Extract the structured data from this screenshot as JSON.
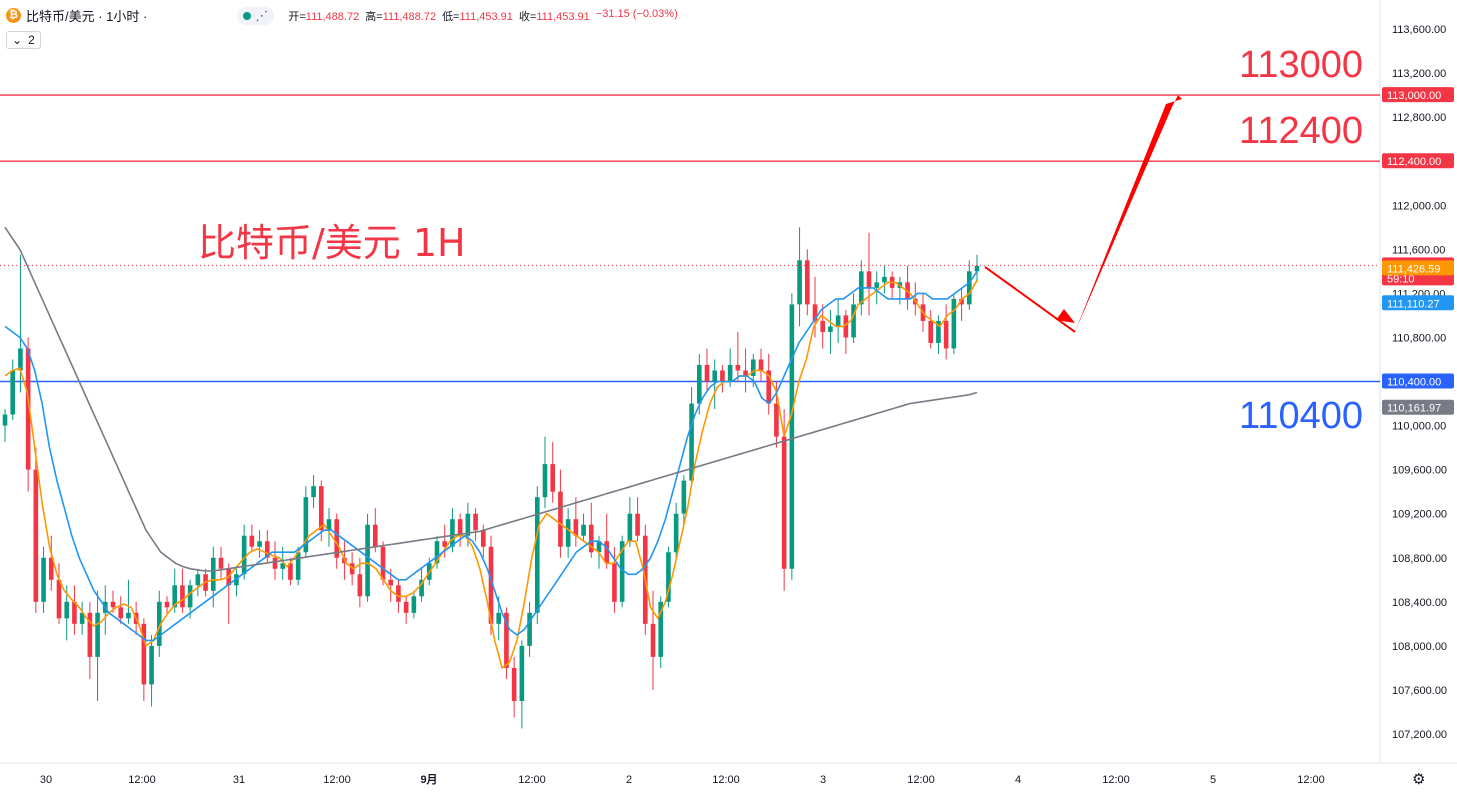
{
  "header": {
    "symbol_label": "比特币/美元 · 1小时 ·",
    "coin_icon": "bitcoin-icon",
    "ohlc": [
      {
        "label": "开=",
        "value": "111,488.72"
      },
      {
        "label": "高=",
        "value": "111,488.72"
      },
      {
        "label": "低=",
        "value": "111,453.91"
      },
      {
        "label": "收=",
        "value": "111,453.91"
      },
      {
        "label": "",
        "value": "−31.15 (−0.03%)"
      }
    ]
  },
  "indicator_toggle": {
    "icon": "chevron-down-icon",
    "count": "2"
  },
  "settings_icon": "gear-icon",
  "colors": {
    "up": "#089981",
    "down": "#f23645",
    "ma_fast": "#ff9800",
    "ma_mid": "#2196f3",
    "ma_slow": "#787b86",
    "support": "#2962ff",
    "resistance": "#f23645"
  },
  "chart_data": {
    "type": "candlestick",
    "title": "比特币/美元 1H",
    "ylim": [
      107000,
      113800
    ],
    "y_ticks": [
      "113,600.00",
      "113,200.00",
      "112,800.00",
      "112,400.00",
      "112,000.00",
      "111,600.00",
      "111,200.00",
      "110,800.00",
      "110,400.00",
      "110,000.00",
      "109,600.00",
      "109,200.00",
      "108,800.00",
      "108,400.00",
      "108,000.00",
      "107,600.00",
      "107,200.00"
    ],
    "x_ticks": [
      "30",
      "12:00",
      "31",
      "12:00",
      "9月",
      "12:00",
      "2",
      "12:00",
      "3",
      "12:00",
      "4",
      "12:00",
      "5",
      "12:00"
    ],
    "candles_ohlc": [
      [
        110000,
        110150,
        109850,
        110100
      ],
      [
        110100,
        110600,
        110050,
        110500
      ],
      [
        110500,
        111550,
        110300,
        110700
      ],
      [
        110700,
        110800,
        109400,
        109600
      ],
      [
        109600,
        109800,
        108300,
        108400
      ],
      [
        108400,
        108900,
        108300,
        108800
      ],
      [
        108800,
        109000,
        108500,
        108600
      ],
      [
        108600,
        108750,
        108200,
        108250
      ],
      [
        108250,
        108550,
        108050,
        108400
      ],
      [
        108400,
        108550,
        108100,
        108200
      ],
      [
        108200,
        108400,
        108100,
        108300
      ],
      [
        108300,
        108400,
        107700,
        107900
      ],
      [
        107900,
        108500,
        107500,
        108300
      ],
      [
        108300,
        108550,
        108100,
        108400
      ],
      [
        108400,
        108500,
        108300,
        108350
      ],
      [
        108350,
        108450,
        108200,
        108250
      ],
      [
        108250,
        108600,
        108200,
        108300
      ],
      [
        108300,
        108400,
        108100,
        108200
      ],
      [
        108200,
        108250,
        107500,
        107650
      ],
      [
        107650,
        108100,
        107450,
        108000
      ],
      [
        108000,
        108500,
        107900,
        108400
      ],
      [
        108400,
        108450,
        108300,
        108350
      ],
      [
        108350,
        108700,
        108300,
        108550
      ],
      [
        108550,
        108700,
        108300,
        108350
      ],
      [
        108350,
        108600,
        108250,
        108550
      ],
      [
        108550,
        108700,
        108450,
        108650
      ],
      [
        108650,
        108700,
        108450,
        108500
      ],
      [
        108500,
        108900,
        108350,
        108800
      ],
      [
        108800,
        108900,
        108600,
        108700
      ],
      [
        108700,
        108750,
        108200,
        108550
      ],
      [
        108550,
        108700,
        108450,
        108650
      ],
      [
        108650,
        109100,
        108600,
        109000
      ],
      [
        109000,
        109100,
        108850,
        108900
      ],
      [
        108900,
        109050,
        108800,
        108950
      ],
      [
        108950,
        109050,
        108750,
        108800
      ],
      [
        108800,
        108950,
        108600,
        108700
      ],
      [
        108700,
        108900,
        108600,
        108750
      ],
      [
        108750,
        108800,
        108550,
        108600
      ],
      [
        108600,
        108900,
        108550,
        108850
      ],
      [
        108850,
        109450,
        108800,
        109350
      ],
      [
        109350,
        109550,
        109250,
        109450
      ],
      [
        109450,
        109500,
        108950,
        109050
      ],
      [
        109050,
        109250,
        108900,
        109150
      ],
      [
        109150,
        109200,
        108700,
        108800
      ],
      [
        108800,
        108950,
        108600,
        108750
      ],
      [
        108750,
        108850,
        108550,
        108650
      ],
      [
        108650,
        108800,
        108350,
        108450
      ],
      [
        108450,
        109200,
        108400,
        109100
      ],
      [
        109100,
        109250,
        108850,
        108900
      ],
      [
        108900,
        108950,
        108550,
        108600
      ],
      [
        108600,
        108700,
        108400,
        108550
      ],
      [
        108550,
        108600,
        108300,
        108400
      ],
      [
        108400,
        108450,
        108200,
        108300
      ],
      [
        108300,
        108500,
        108250,
        108450
      ],
      [
        108450,
        108700,
        108400,
        108600
      ],
      [
        108600,
        108800,
        108550,
        108750
      ],
      [
        108750,
        109000,
        108700,
        108950
      ],
      [
        108950,
        109100,
        108800,
        108900
      ],
      [
        108900,
        109250,
        108850,
        109150
      ],
      [
        109150,
        109200,
        108900,
        109000
      ],
      [
        109000,
        109300,
        108900,
        109200
      ],
      [
        109200,
        109250,
        108950,
        109050
      ],
      [
        109050,
        109100,
        108800,
        108900
      ],
      [
        108900,
        109000,
        108100,
        108200
      ],
      [
        108200,
        108450,
        108050,
        108300
      ],
      [
        108300,
        108350,
        107700,
        107800
      ],
      [
        107800,
        107900,
        107350,
        107500
      ],
      [
        107500,
        108050,
        107250,
        108000
      ],
      [
        108000,
        108400,
        107900,
        108300
      ],
      [
        108300,
        109450,
        108200,
        109350
      ],
      [
        109350,
        109900,
        109250,
        109650
      ],
      [
        109650,
        109850,
        109300,
        109400
      ],
      [
        109400,
        109600,
        108800,
        108900
      ],
      [
        108900,
        109250,
        108800,
        109150
      ],
      [
        109150,
        109350,
        108900,
        109000
      ],
      [
        109000,
        109200,
        108950,
        109100
      ],
      [
        109100,
        109300,
        108800,
        108850
      ],
      [
        108850,
        109000,
        108700,
        108950
      ],
      [
        108950,
        109200,
        108700,
        108750
      ],
      [
        108750,
        108900,
        108300,
        108400
      ],
      [
        108400,
        109000,
        108350,
        108950
      ],
      [
        108950,
        109350,
        108900,
        109200
      ],
      [
        109200,
        109350,
        108950,
        109000
      ],
      [
        109000,
        109100,
        108100,
        108200
      ],
      [
        108200,
        108500,
        107600,
        107900
      ],
      [
        107900,
        108450,
        107800,
        108400
      ],
      [
        108400,
        108900,
        108350,
        108850
      ],
      [
        108850,
        109300,
        108800,
        109200
      ],
      [
        109200,
        109550,
        109100,
        109500
      ],
      [
        109500,
        110350,
        109450,
        110200
      ],
      [
        110200,
        110650,
        110100,
        110550
      ],
      [
        110550,
        110700,
        110300,
        110400
      ],
      [
        110400,
        110600,
        110150,
        110500
      ],
      [
        110500,
        110550,
        110300,
        110400
      ],
      [
        110400,
        110700,
        110350,
        110550
      ],
      [
        110550,
        110850,
        110400,
        110500
      ],
      [
        110500,
        110700,
        110300,
        110450
      ],
      [
        110450,
        110650,
        110350,
        110600
      ],
      [
        110600,
        110700,
        110400,
        110500
      ],
      [
        110500,
        110650,
        110100,
        110200
      ],
      [
        110200,
        110400,
        109800,
        109900
      ],
      [
        109900,
        110150,
        108500,
        108700
      ],
      [
        108700,
        111200,
        108600,
        111100
      ],
      [
        111100,
        111800,
        110900,
        111500
      ],
      [
        111500,
        111600,
        111000,
        111100
      ],
      [
        111100,
        111350,
        110800,
        110950
      ],
      [
        110950,
        111100,
        110700,
        110850
      ],
      [
        110850,
        111050,
        110650,
        110900
      ],
      [
        110900,
        111150,
        110750,
        111000
      ],
      [
        111000,
        111050,
        110650,
        110800
      ],
      [
        110800,
        111200,
        110750,
        111100
      ],
      [
        111100,
        111500,
        111000,
        111400
      ],
      [
        111400,
        111750,
        111000,
        111250
      ],
      [
        111250,
        111400,
        111100,
        111300
      ],
      [
        111300,
        111450,
        111200,
        111350
      ],
      [
        111350,
        111400,
        111150,
        111250
      ],
      [
        111250,
        111350,
        111100,
        111300
      ],
      [
        111300,
        111450,
        111050,
        111150
      ],
      [
        111150,
        111300,
        111000,
        111100
      ],
      [
        111100,
        111200,
        110850,
        110950
      ],
      [
        110950,
        111050,
        110700,
        110750
      ],
      [
        110750,
        111000,
        110650,
        110950
      ],
      [
        110950,
        111100,
        110600,
        110700
      ],
      [
        110700,
        111200,
        110650,
        111150
      ],
      [
        111150,
        111250,
        110950,
        111100
      ],
      [
        111100,
        111500,
        111050,
        111400
      ],
      [
        111400,
        111550,
        111300,
        111450
      ]
    ],
    "series": [
      {
        "name": "",
        "values": [
          110450,
          110500,
          110520,
          110300,
          109800,
          109300,
          108900,
          108650,
          108500,
          108420,
          108350,
          108250,
          108180,
          108220,
          108300,
          108350,
          108380,
          108350,
          108200,
          108000,
          108050,
          108200,
          108300,
          108380,
          108420,
          108480,
          108530,
          108580,
          108600,
          108600,
          108620,
          108700,
          108780,
          108850,
          108880,
          108850,
          108820,
          108800,
          108720,
          108800,
          108900,
          109000,
          109050,
          109100,
          109000,
          108900,
          108750,
          108700,
          108750,
          108750,
          108700,
          108600,
          108500,
          108450,
          108450,
          108480,
          108550,
          108650,
          108750,
          108850,
          108950,
          109000,
          109000,
          108900,
          108700,
          108400,
          108050,
          107800,
          107850,
          108050,
          108400,
          108800,
          109100,
          109200,
          109150,
          109100,
          109050,
          109000,
          108950,
          108900,
          108850,
          108750,
          108750,
          108850,
          108950,
          108950,
          108700,
          108350,
          108250,
          108400,
          108650,
          108950,
          109250,
          109650,
          109950,
          110200,
          110350,
          110400,
          110400,
          110450,
          110450,
          110500,
          110500,
          110450,
          110300,
          109900,
          110100,
          110400,
          110600,
          110900,
          111000,
          110950,
          110900,
          110900,
          110950,
          111100,
          111150,
          111200,
          111250,
          111300,
          111300,
          111250,
          111200,
          111100,
          111000,
          110950,
          110900,
          111000,
          111050,
          111150,
          111200,
          111320
        ]
      },
      {
        "name": "",
        "values": [
          110900,
          110850,
          110800,
          110700,
          110500,
          110200,
          109800,
          109500,
          109250,
          109000,
          108800,
          108650,
          108500,
          108400,
          108300,
          108250,
          108200,
          108150,
          108100,
          108050,
          108050,
          108100,
          108150,
          108200,
          108250,
          108300,
          108350,
          108400,
          108450,
          108500,
          108550,
          108600,
          108650,
          108700,
          108750,
          108800,
          108850,
          108850,
          108850,
          108850,
          108900,
          108950,
          109000,
          109050,
          109050,
          109000,
          108950,
          108900,
          108850,
          108800,
          108750,
          108700,
          108650,
          108600,
          108600,
          108650,
          108700,
          108750,
          108800,
          108850,
          108900,
          108950,
          109000,
          108950,
          108850,
          108700,
          108500,
          108300,
          108150,
          108100,
          108150,
          108250,
          108350,
          108450,
          108550,
          108650,
          108750,
          108850,
          108900,
          108950,
          108950,
          108900,
          108800,
          108700,
          108650,
          108650,
          108700,
          108800,
          108950,
          109150,
          109400,
          109650,
          109900,
          110100,
          110250,
          110350,
          110400,
          110400,
          110400,
          110450,
          110450,
          110400,
          110250,
          110200,
          110300,
          110450,
          110600,
          110750,
          110850,
          110950,
          111050,
          111100,
          111150,
          111150,
          111200,
          111250,
          111250,
          111250,
          111200,
          111150,
          111150,
          111150,
          111150,
          111200,
          111200,
          111150,
          111150,
          111150,
          111200,
          111250,
          111300,
          111400
        ]
      },
      {
        "name": "",
        "values": [
          111800,
          111700,
          111600,
          111450,
          111300,
          111150,
          111000,
          110850,
          110700,
          110550,
          110400,
          110250,
          110100,
          109950,
          109800,
          109650,
          109500,
          109350,
          109200,
          109050,
          108950,
          108850,
          108800,
          108750,
          108720,
          108700,
          108690,
          108680,
          108680,
          108690,
          108700,
          108710,
          108720,
          108730,
          108740,
          108750,
          108760,
          108770,
          108780,
          108790,
          108800,
          108810,
          108820,
          108830,
          108840,
          108850,
          108860,
          108870,
          108880,
          108890,
          108900,
          108910,
          108920,
          108930,
          108940,
          108950,
          108960,
          108970,
          108980,
          108990,
          109000,
          109010,
          109020,
          109030,
          109040,
          109060,
          109080,
          109100,
          109120,
          109140,
          109160,
          109180,
          109200,
          109220,
          109240,
          109260,
          109280,
          109300,
          109320,
          109340,
          109360,
          109380,
          109400,
          109420,
          109440,
          109460,
          109480,
          109500,
          109520,
          109540,
          109560,
          109580,
          109600,
          109620,
          109640,
          109660,
          109680,
          109700,
          109720,
          109740,
          109760,
          109780,
          109800,
          109820,
          109840,
          109860,
          109880,
          109900,
          109920,
          109940,
          109960,
          109980,
          110000,
          110020,
          110040,
          110060,
          110080,
          110100,
          110120,
          110140,
          110160,
          110180,
          110200,
          110210,
          110220,
          110230,
          110240,
          110250,
          110260,
          110270,
          110280,
          110300
        ]
      }
    ],
    "levels": [
      {
        "label": "113000",
        "value": 113000,
        "tag": "113,000.00"
      },
      {
        "label": "112400",
        "value": 112400,
        "tag": "112,400.00"
      },
      {
        "label": "110400",
        "value": 110400,
        "tag": "110,400.00"
      }
    ],
    "price_tags": [
      {
        "value": 111453.91,
        "text": "111,453.91",
        "sub": "59:10"
      },
      {
        "value": 111426.59,
        "text": "111,426.59"
      },
      {
        "value": 111110.27,
        "text": "111,110.27"
      },
      {
        "value": 110161.97,
        "text": "110,161.97"
      }
    ],
    "forecast_path": [
      [
        111440,
        0
      ],
      [
        110850,
        1
      ],
      [
        113000,
        2
      ]
    ]
  }
}
